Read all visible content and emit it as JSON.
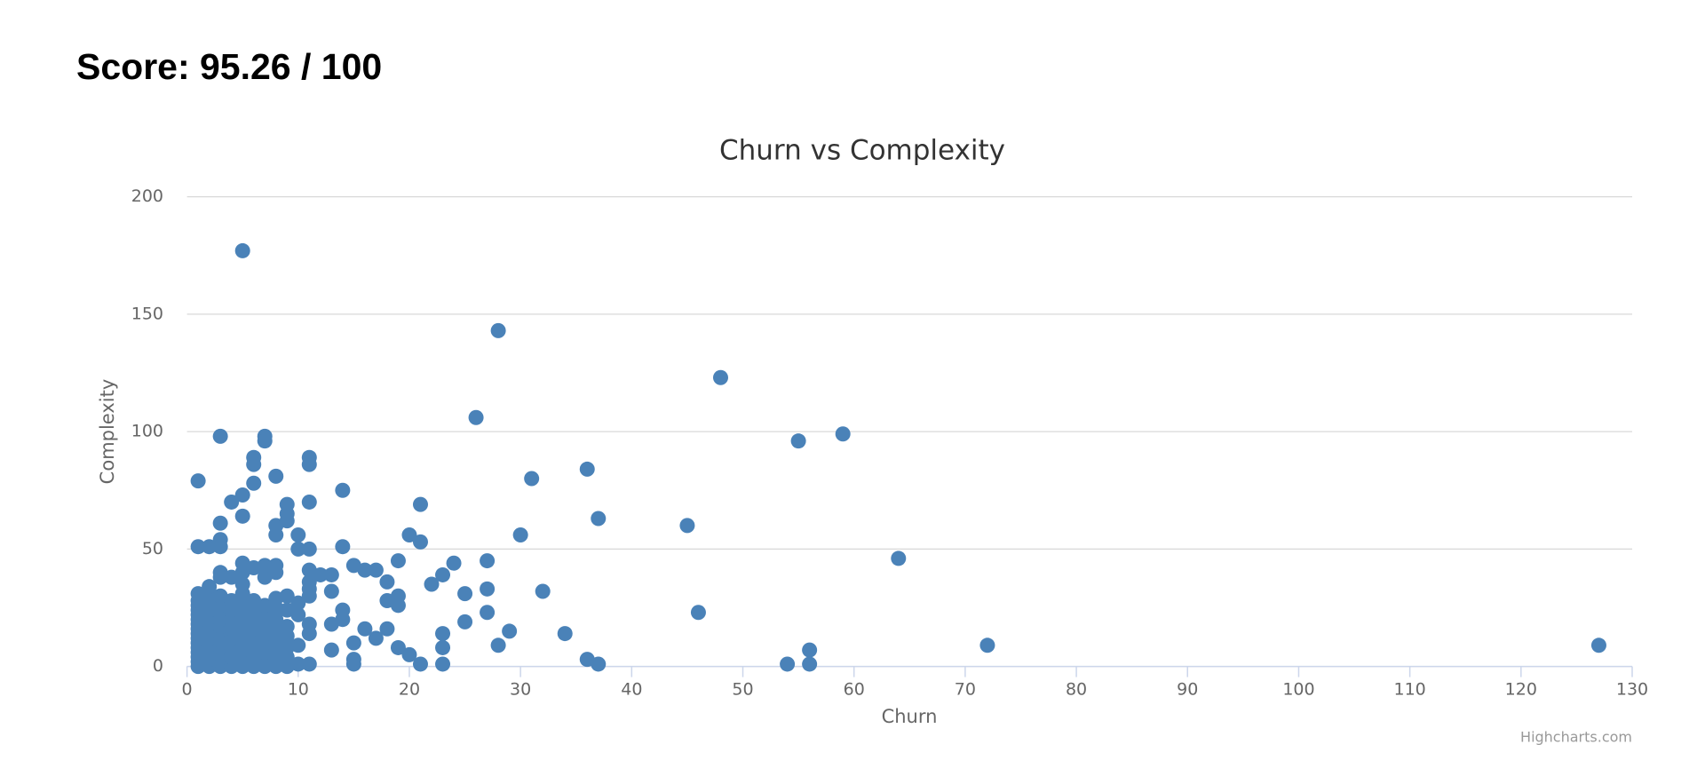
{
  "header": {
    "score": "Score: 95.26 / 100"
  },
  "chart_data": {
    "type": "scatter",
    "title": "Churn vs Complexity",
    "x_label": "Churn",
    "y_label": "Complexity",
    "credits": "Highcharts.com",
    "color": "#4a82b8",
    "grid": true,
    "xlim": [
      0,
      130
    ],
    "xticks": [
      0,
      10,
      20,
      30,
      40,
      50,
      60,
      70,
      80,
      90,
      100,
      110,
      120,
      130
    ],
    "ylim": [
      0,
      200
    ],
    "yticks": [
      0,
      50,
      100,
      150,
      200
    ],
    "x": [
      5,
      28,
      48,
      26,
      3,
      7,
      7,
      55,
      59,
      6,
      11,
      6,
      11,
      1,
      8,
      6,
      31,
      36,
      14,
      4,
      5,
      11,
      21,
      9,
      9,
      9,
      5,
      37,
      3,
      8,
      45,
      8,
      10,
      20,
      30,
      3,
      21,
      1,
      2,
      3,
      10,
      11,
      14,
      64,
      19,
      24,
      27,
      15,
      16,
      17,
      18,
      22,
      23,
      13,
      12,
      25,
      32,
      27,
      13,
      18,
      19,
      19,
      46,
      27,
      14,
      14,
      25,
      13,
      16,
      18,
      29,
      23,
      34,
      17,
      28,
      23,
      19,
      15,
      20,
      127,
      72,
      56,
      13,
      36,
      37,
      54,
      56,
      21,
      23,
      15,
      15,
      11,
      10,
      1,
      1,
      1,
      1,
      1,
      1,
      1,
      1,
      1,
      1,
      1,
      1,
      1,
      1,
      1,
      1,
      2,
      2,
      2,
      2,
      2,
      2,
      2,
      2,
      2,
      2,
      2,
      2,
      3,
      3,
      3,
      3,
      3,
      3,
      3,
      3,
      3,
      3,
      3,
      3,
      3,
      4,
      4,
      4,
      4,
      4,
      4,
      4,
      4,
      4,
      5,
      5,
      5,
      5,
      5,
      5,
      5,
      5,
      5,
      5,
      5,
      5,
      6,
      6,
      6,
      6,
      6,
      6,
      6,
      6,
      6,
      7,
      7,
      7,
      7,
      7,
      7,
      7,
      7,
      7,
      7,
      8,
      8,
      8,
      8,
      8,
      8,
      8,
      8,
      8,
      9,
      9,
      9,
      9,
      9,
      9,
      9,
      10,
      10,
      10,
      11,
      11,
      11,
      11,
      11,
      11
    ],
    "values": [
      177,
      143,
      123,
      106,
      98,
      98,
      96,
      96,
      99,
      89,
      89,
      86,
      86,
      79,
      81,
      78,
      80,
      84,
      75,
      70,
      73,
      70,
      69,
      69,
      65,
      62,
      64,
      63,
      61,
      60,
      60,
      56,
      56,
      56,
      56,
      54,
      53,
      51,
      51,
      51,
      50,
      50,
      51,
      46,
      45,
      44,
      45,
      43,
      41,
      41,
      36,
      35,
      39,
      39,
      39,
      31,
      32,
      33,
      32,
      28,
      30,
      26,
      23,
      23,
      24,
      20,
      19,
      18,
      16,
      16,
      15,
      14,
      14,
      12,
      9,
      8,
      8,
      10,
      5,
      9,
      9,
      7,
      7,
      3,
      1,
      1,
      1,
      1,
      1,
      3,
      1,
      1,
      1,
      0,
      2,
      4,
      6,
      8,
      10,
      12,
      14,
      16,
      18,
      20,
      22,
      24,
      26,
      28,
      31,
      0,
      3,
      6,
      9,
      12,
      15,
      18,
      21,
      24,
      27,
      30,
      34,
      0,
      2,
      5,
      8,
      11,
      14,
      17,
      20,
      23,
      26,
      30,
      38,
      40,
      0,
      4,
      8,
      12,
      16,
      20,
      24,
      28,
      38,
      0,
      3,
      7,
      11,
      15,
      19,
      23,
      27,
      31,
      35,
      40,
      44,
      0,
      4,
      8,
      12,
      16,
      20,
      24,
      28,
      42,
      0,
      3,
      6,
      10,
      14,
      18,
      22,
      26,
      38,
      43,
      0,
      5,
      10,
      15,
      20,
      25,
      29,
      40,
      43,
      0,
      4,
      8,
      13,
      17,
      24,
      30,
      9,
      22,
      27,
      14,
      18,
      30,
      33,
      36,
      41
    ]
  }
}
